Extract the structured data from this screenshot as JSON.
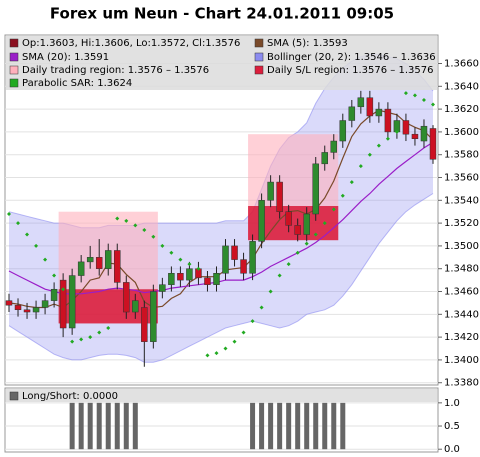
{
  "chart_data": [
    {
      "type": "candlestick",
      "title": "Forex um Neun - Chart 24.01.2011 09:05",
      "ylim": [
        1.3378,
        1.3685
      ],
      "yticks": [
        {
          "value": 1.338,
          "label": "1.3380"
        },
        {
          "value": 1.34,
          "label": "1.3400"
        },
        {
          "value": 1.342,
          "label": "1.3420"
        },
        {
          "value": 1.344,
          "label": "1.3440"
        },
        {
          "value": 1.346,
          "label": "1.3460"
        },
        {
          "value": 1.348,
          "label": "1.3480"
        },
        {
          "value": 1.35,
          "label": "1.3500"
        },
        {
          "value": 1.352,
          "label": "1.3520"
        },
        {
          "value": 1.354,
          "label": "1.3540"
        },
        {
          "value": 1.356,
          "label": "1.3560"
        },
        {
          "value": 1.358,
          "label": "1.3580"
        },
        {
          "value": 1.36,
          "label": "1.3600"
        },
        {
          "value": 1.362,
          "label": "1.3620"
        },
        {
          "value": 1.364,
          "label": "1.3640"
        },
        {
          "value": 1.366,
          "label": "1.3660"
        }
      ],
      "grid": true,
      "ohlc": {
        "name": "Op:1.3603, Hi:1.3606, Lo:1.3572, Cl:1.3576",
        "color": "#8b1020",
        "color_up": "#2e8b2e",
        "color_down": "#cc1122",
        "open": [
          1.3452,
          1.3448,
          1.3444,
          1.3442,
          1.3446,
          1.3452,
          1.347,
          1.3428,
          1.3474,
          1.3486,
          1.349,
          1.348,
          1.3496,
          1.3468,
          1.3442,
          1.3446,
          1.3416,
          1.346,
          1.3466,
          1.3476,
          1.347,
          1.348,
          1.3472,
          1.3466,
          1.3476,
          1.35,
          1.3488,
          1.3476,
          1.3504,
          1.354,
          1.3556,
          1.353,
          1.3518,
          1.351,
          1.3528,
          1.3572,
          1.3582,
          1.3592,
          1.361,
          1.3622,
          1.363,
          1.3614,
          1.362,
          1.36,
          1.361,
          1.3598,
          1.3592,
          1.3603
        ],
        "high": [
          1.3458,
          1.3454,
          1.345,
          1.3452,
          1.3458,
          1.3468,
          1.3476,
          1.348,
          1.3492,
          1.35,
          1.3506,
          1.3502,
          1.3502,
          1.3474,
          1.3458,
          1.3452,
          1.3466,
          1.3472,
          1.3482,
          1.3482,
          1.3486,
          1.3486,
          1.3478,
          1.3482,
          1.3506,
          1.3506,
          1.3494,
          1.351,
          1.3546,
          1.3562,
          1.3562,
          1.3536,
          1.3524,
          1.3534,
          1.3578,
          1.3588,
          1.3598,
          1.3616,
          1.3628,
          1.3636,
          1.3636,
          1.3626,
          1.3626,
          1.3616,
          1.3616,
          1.3604,
          1.3611,
          1.3606
        ],
        "low": [
          1.3442,
          1.3438,
          1.3436,
          1.3436,
          1.344,
          1.3446,
          1.342,
          1.3422,
          1.3468,
          1.348,
          1.3474,
          1.3474,
          1.3462,
          1.3436,
          1.3436,
          1.3394,
          1.341,
          1.3454,
          1.346,
          1.3464,
          1.3464,
          1.3466,
          1.346,
          1.346,
          1.347,
          1.3482,
          1.347,
          1.347,
          1.3498,
          1.3534,
          1.3524,
          1.3512,
          1.3504,
          1.3504,
          1.3522,
          1.3566,
          1.3576,
          1.3586,
          1.3604,
          1.3616,
          1.3608,
          1.3608,
          1.3594,
          1.3594,
          1.3592,
          1.3588,
          1.3586,
          1.3572
        ],
        "close": [
          1.3448,
          1.3444,
          1.3442,
          1.3446,
          1.3452,
          1.3462,
          1.3428,
          1.3474,
          1.3486,
          1.349,
          1.348,
          1.3496,
          1.3468,
          1.3442,
          1.3452,
          1.3416,
          1.346,
          1.3466,
          1.3476,
          1.347,
          1.348,
          1.3472,
          1.3466,
          1.3476,
          1.35,
          1.3488,
          1.3476,
          1.3504,
          1.354,
          1.3556,
          1.353,
          1.3518,
          1.351,
          1.3528,
          1.3572,
          1.3582,
          1.3592,
          1.361,
          1.3622,
          1.363,
          1.3614,
          1.362,
          1.36,
          1.361,
          1.3598,
          1.3594,
          1.3605,
          1.3576
        ]
      },
      "series": [
        {
          "name": "SMA (5): 1.3593",
          "color": "#7a4a2a",
          "values": [
            1.345,
            1.3449,
            1.3447,
            1.3446,
            1.3446,
            1.3449,
            1.3446,
            1.3452,
            1.346,
            1.347,
            1.3472,
            1.3485,
            1.3484,
            1.3475,
            1.3468,
            1.3451,
            1.3446,
            1.3447,
            1.3454,
            1.3458,
            1.3468,
            1.3473,
            1.3473,
            1.3473,
            1.3479,
            1.348,
            1.3481,
            1.3489,
            1.3502,
            1.3513,
            1.3523,
            1.353,
            1.3531,
            1.3528,
            1.3532,
            1.3542,
            1.3557,
            1.3577,
            1.3596,
            1.3607,
            1.3614,
            1.3619,
            1.3617,
            1.3615,
            1.3608,
            1.3604,
            1.3601,
            1.3593
          ]
        },
        {
          "name": "SMA (20): 1.3591",
          "color": "#9a1ec8",
          "values": [
            1.3478,
            1.3474,
            1.347,
            1.3466,
            1.3462,
            1.346,
            1.3458,
            1.3458,
            1.3458,
            1.3459,
            1.346,
            1.3462,
            1.3463,
            1.3462,
            1.3461,
            1.3459,
            1.346,
            1.3461,
            1.3463,
            1.3464,
            1.3465,
            1.3466,
            1.3467,
            1.3468,
            1.347,
            1.347,
            1.347,
            1.3473,
            1.3477,
            1.3482,
            1.3486,
            1.349,
            1.3494,
            1.3498,
            1.3503,
            1.3509,
            1.3516,
            1.3523,
            1.3531,
            1.3539,
            1.3546,
            1.3554,
            1.3561,
            1.3568,
            1.3574,
            1.358,
            1.3586,
            1.3591
          ]
        }
      ],
      "bollinger": {
        "name": "Bollinger (20, 2): 1.3546 – 1.3636",
        "color": "#8c8cf0",
        "upper": [
          1.353,
          1.3528,
          1.3526,
          1.3524,
          1.3522,
          1.352,
          1.352,
          1.3518,
          1.3516,
          1.3516,
          1.3516,
          1.3518,
          1.3518,
          1.3518,
          1.3518,
          1.352,
          1.352,
          1.352,
          1.352,
          1.352,
          1.352,
          1.352,
          1.352,
          1.352,
          1.3522,
          1.3522,
          1.3522,
          1.353,
          1.355,
          1.357,
          1.3585,
          1.3595,
          1.36,
          1.3608,
          1.3625,
          1.3638,
          1.3648,
          1.3656,
          1.3662,
          1.3666,
          1.3668,
          1.3668,
          1.3666,
          1.3664,
          1.366,
          1.3654,
          1.3646,
          1.3636
        ],
        "lower": [
          1.343,
          1.3425,
          1.342,
          1.3415,
          1.341,
          1.3405,
          1.3402,
          1.34,
          1.34,
          1.3402,
          1.3404,
          1.3405,
          1.3405,
          1.3404,
          1.3402,
          1.3398,
          1.3398,
          1.34,
          1.3404,
          1.3408,
          1.3412,
          1.3416,
          1.342,
          1.3424,
          1.3428,
          1.343,
          1.3432,
          1.3434,
          1.3432,
          1.343,
          1.3428,
          1.343,
          1.3434,
          1.344,
          1.3442,
          1.3444,
          1.3448,
          1.3456,
          1.3466,
          1.3478,
          1.349,
          1.3502,
          1.3512,
          1.3522,
          1.353,
          1.3536,
          1.3541,
          1.3546
        ]
      },
      "regions": [
        {
          "name": "Daily trading region: 1.3576 – 1.3576",
          "color": "#ffb0bc",
          "boxes": [
            {
              "from": 6,
              "to": 16,
              "low": 1.3462,
              "high": 1.353
            },
            {
              "from": 27,
              "to": 36,
              "low": 1.3535,
              "high": 1.3598
            }
          ]
        },
        {
          "name": "Daily S/L region: 1.3576 – 1.3576",
          "color": "#dc1e3c",
          "boxes": [
            {
              "from": 6,
              "to": 16,
              "low": 1.3432,
              "high": 1.3462
            },
            {
              "from": 27,
              "to": 36,
              "low": 1.3505,
              "high": 1.3535
            }
          ]
        }
      ],
      "sar": {
        "name": "Parabolic SAR: 1.3624",
        "color": "#22aa22",
        "values": [
          1.3528,
          1.352,
          1.351,
          1.35,
          1.3488,
          1.3474,
          1.3462,
          1.3416,
          1.3418,
          1.342,
          1.3424,
          1.3428,
          1.3524,
          1.3522,
          1.3518,
          1.3514,
          1.3508,
          1.35,
          1.3494,
          1.3488,
          1.3484,
          1.348,
          1.3404,
          1.3406,
          1.341,
          1.3416,
          1.3424,
          1.3434,
          1.3446,
          1.346,
          1.3474,
          1.3484,
          1.3494,
          1.3502,
          1.351,
          1.352,
          1.3532,
          1.3544,
          1.3556,
          1.357,
          1.358,
          1.3588,
          1.3594,
          1.36,
          1.3634,
          1.3632,
          1.3628,
          1.3624
        ]
      }
    },
    {
      "type": "bar",
      "ylim": [
        -0.06,
        1.32
      ],
      "yticks": [
        {
          "value": 0,
          "label": "0.0"
        },
        {
          "value": 0.5,
          "label": "0.5"
        },
        {
          "value": 1,
          "label": "1.0"
        }
      ],
      "grid": true,
      "series": [
        {
          "name": "Long/Short: 0.0000",
          "color": "#666666",
          "values": [
            0,
            0,
            0,
            0,
            0,
            0,
            0,
            1,
            1,
            1,
            1,
            1,
            1,
            1,
            1,
            0,
            0,
            0,
            0,
            0,
            0,
            0,
            0,
            0,
            0,
            0,
            0,
            1,
            1,
            1,
            1,
            1,
            1,
            1,
            1,
            1,
            1,
            1,
            0,
            0,
            0,
            0,
            0,
            0,
            0,
            0,
            0,
            0
          ]
        }
      ]
    }
  ]
}
